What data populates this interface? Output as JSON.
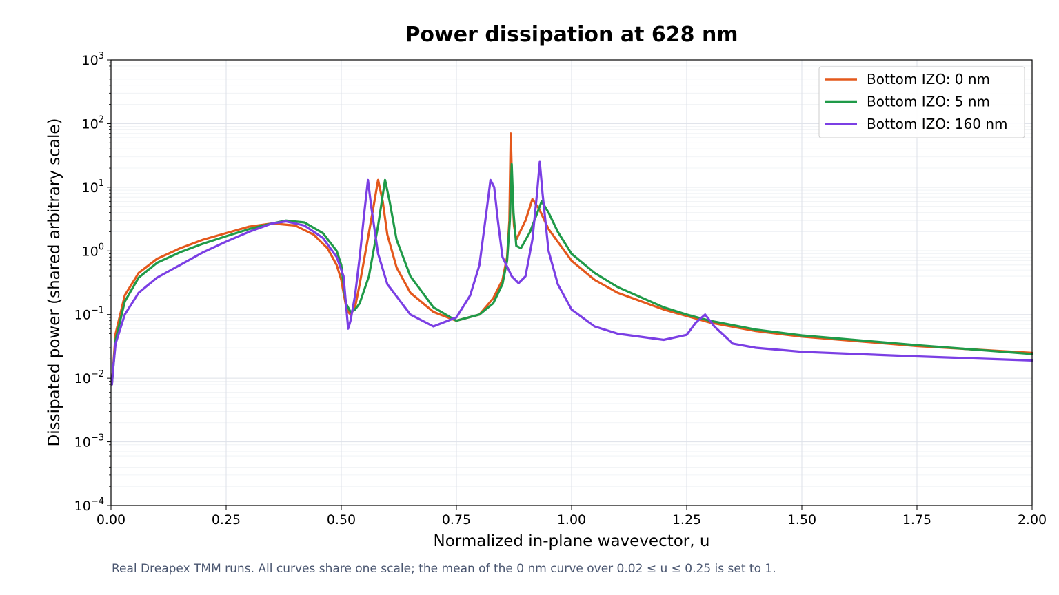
{
  "chart_data": {
    "type": "line",
    "title": "Power dissipation at 628 nm",
    "xlabel": "Normalized in-plane wavevector, u",
    "ylabel": "Dissipated power (shared arbitrary scale)",
    "xlim": [
      0,
      2
    ],
    "ylim": [
      0.0001,
      1000
    ],
    "yscale": "log",
    "grid": true,
    "legend_position": "top-right",
    "x_ticks": [
      "0.00",
      "0.25",
      "0.50",
      "0.75",
      "1.00",
      "1.25",
      "1.50",
      "1.75",
      "2.00"
    ],
    "y_ticks": [
      {
        "base": "10",
        "exp": "−4"
      },
      {
        "base": "10",
        "exp": "−3"
      },
      {
        "base": "10",
        "exp": "−2"
      },
      {
        "base": "10",
        "exp": "−1"
      },
      {
        "base": "10",
        "exp": "0"
      },
      {
        "base": "10",
        "exp": "1"
      },
      {
        "base": "10",
        "exp": "2"
      },
      {
        "base": "10",
        "exp": "3"
      }
    ],
    "series": [
      {
        "name": "Bottom IZO: 0 nm",
        "color": "#e4581c",
        "points": [
          [
            0.002,
            0.008
          ],
          [
            0.01,
            0.05
          ],
          [
            0.03,
            0.2
          ],
          [
            0.06,
            0.45
          ],
          [
            0.1,
            0.75
          ],
          [
            0.15,
            1.1
          ],
          [
            0.2,
            1.5
          ],
          [
            0.25,
            1.9
          ],
          [
            0.3,
            2.4
          ],
          [
            0.35,
            2.7
          ],
          [
            0.4,
            2.5
          ],
          [
            0.44,
            1.8
          ],
          [
            0.47,
            1.1
          ],
          [
            0.49,
            0.6
          ],
          [
            0.5,
            0.35
          ],
          [
            0.505,
            0.22
          ],
          [
            0.51,
            0.14
          ],
          [
            0.515,
            0.11
          ],
          [
            0.52,
            0.1
          ],
          [
            0.53,
            0.13
          ],
          [
            0.54,
            0.3
          ],
          [
            0.555,
            1.2
          ],
          [
            0.57,
            5
          ],
          [
            0.58,
            13
          ],
          [
            0.59,
            6
          ],
          [
            0.6,
            1.8
          ],
          [
            0.62,
            0.55
          ],
          [
            0.65,
            0.22
          ],
          [
            0.7,
            0.11
          ],
          [
            0.75,
            0.08
          ],
          [
            0.8,
            0.1
          ],
          [
            0.83,
            0.18
          ],
          [
            0.85,
            0.35
          ],
          [
            0.86,
            0.8
          ],
          [
            0.865,
            3
          ],
          [
            0.868,
            70
          ],
          [
            0.871,
            10
          ],
          [
            0.875,
            2.5
          ],
          [
            0.88,
            1.5
          ],
          [
            0.9,
            3
          ],
          [
            0.915,
            6.5
          ],
          [
            0.93,
            4.5
          ],
          [
            0.95,
            2.2
          ],
          [
            1.0,
            0.7
          ],
          [
            1.05,
            0.35
          ],
          [
            1.1,
            0.22
          ],
          [
            1.2,
            0.12
          ],
          [
            1.25,
            0.095
          ],
          [
            1.3,
            0.075
          ],
          [
            1.4,
            0.055
          ],
          [
            1.5,
            0.045
          ],
          [
            1.75,
            0.032
          ],
          [
            2.0,
            0.025
          ]
        ]
      },
      {
        "name": "Bottom IZO: 5 nm",
        "color": "#1f9a48",
        "points": [
          [
            0.002,
            0.008
          ],
          [
            0.01,
            0.04
          ],
          [
            0.03,
            0.16
          ],
          [
            0.06,
            0.38
          ],
          [
            0.1,
            0.65
          ],
          [
            0.15,
            0.95
          ],
          [
            0.2,
            1.3
          ],
          [
            0.25,
            1.7
          ],
          [
            0.3,
            2.2
          ],
          [
            0.35,
            2.7
          ],
          [
            0.38,
            3.0
          ],
          [
            0.42,
            2.8
          ],
          [
            0.46,
            1.9
          ],
          [
            0.49,
            1.0
          ],
          [
            0.5,
            0.6
          ],
          [
            0.505,
            0.3
          ],
          [
            0.51,
            0.15
          ],
          [
            0.52,
            0.11
          ],
          [
            0.53,
            0.12
          ],
          [
            0.54,
            0.15
          ],
          [
            0.56,
            0.4
          ],
          [
            0.58,
            2.5
          ],
          [
            0.595,
            13
          ],
          [
            0.605,
            6
          ],
          [
            0.62,
            1.5
          ],
          [
            0.65,
            0.4
          ],
          [
            0.7,
            0.13
          ],
          [
            0.75,
            0.08
          ],
          [
            0.8,
            0.1
          ],
          [
            0.83,
            0.15
          ],
          [
            0.85,
            0.3
          ],
          [
            0.86,
            0.7
          ],
          [
            0.866,
            3
          ],
          [
            0.87,
            23
          ],
          [
            0.874,
            4
          ],
          [
            0.88,
            1.2
          ],
          [
            0.89,
            1.1
          ],
          [
            0.91,
            2
          ],
          [
            0.935,
            6
          ],
          [
            0.95,
            4
          ],
          [
            0.97,
            2
          ],
          [
            1.0,
            0.9
          ],
          [
            1.05,
            0.45
          ],
          [
            1.1,
            0.27
          ],
          [
            1.2,
            0.13
          ],
          [
            1.25,
            0.1
          ],
          [
            1.3,
            0.08
          ],
          [
            1.4,
            0.058
          ],
          [
            1.5,
            0.047
          ],
          [
            1.75,
            0.033
          ],
          [
            2.0,
            0.024
          ]
        ]
      },
      {
        "name": "Bottom IZO: 160 nm",
        "color": "#7b3fe4",
        "points": [
          [
            0.002,
            0.008
          ],
          [
            0.005,
            0.015
          ],
          [
            0.01,
            0.035
          ],
          [
            0.03,
            0.1
          ],
          [
            0.06,
            0.22
          ],
          [
            0.1,
            0.38
          ],
          [
            0.15,
            0.6
          ],
          [
            0.2,
            0.95
          ],
          [
            0.25,
            1.4
          ],
          [
            0.3,
            2.0
          ],
          [
            0.35,
            2.7
          ],
          [
            0.38,
            2.9
          ],
          [
            0.42,
            2.5
          ],
          [
            0.46,
            1.6
          ],
          [
            0.49,
            0.8
          ],
          [
            0.505,
            0.4
          ],
          [
            0.51,
            0.15
          ],
          [
            0.515,
            0.06
          ],
          [
            0.52,
            0.08
          ],
          [
            0.53,
            0.2
          ],
          [
            0.54,
            0.8
          ],
          [
            0.55,
            4
          ],
          [
            0.558,
            13
          ],
          [
            0.565,
            5
          ],
          [
            0.58,
            0.9
          ],
          [
            0.6,
            0.3
          ],
          [
            0.65,
            0.1
          ],
          [
            0.7,
            0.065
          ],
          [
            0.75,
            0.09
          ],
          [
            0.78,
            0.2
          ],
          [
            0.8,
            0.6
          ],
          [
            0.815,
            4
          ],
          [
            0.824,
            13
          ],
          [
            0.832,
            10
          ],
          [
            0.84,
            3
          ],
          [
            0.85,
            0.8
          ],
          [
            0.87,
            0.4
          ],
          [
            0.885,
            0.31
          ],
          [
            0.9,
            0.4
          ],
          [
            0.915,
            1.5
          ],
          [
            0.925,
            8
          ],
          [
            0.931,
            25
          ],
          [
            0.937,
            8
          ],
          [
            0.95,
            1
          ],
          [
            0.97,
            0.3
          ],
          [
            1.0,
            0.12
          ],
          [
            1.05,
            0.065
          ],
          [
            1.1,
            0.05
          ],
          [
            1.2,
            0.04
          ],
          [
            1.25,
            0.048
          ],
          [
            1.27,
            0.075
          ],
          [
            1.29,
            0.1
          ],
          [
            1.31,
            0.065
          ],
          [
            1.35,
            0.035
          ],
          [
            1.4,
            0.03
          ],
          [
            1.5,
            0.026
          ],
          [
            1.75,
            0.022
          ],
          [
            2.0,
            0.019
          ]
        ]
      }
    ]
  },
  "caption": "Real Dreapex TMM runs. All curves share one scale; the mean of the 0 nm curve over 0.02 ≤ u ≤ 0.25 is set to 1."
}
